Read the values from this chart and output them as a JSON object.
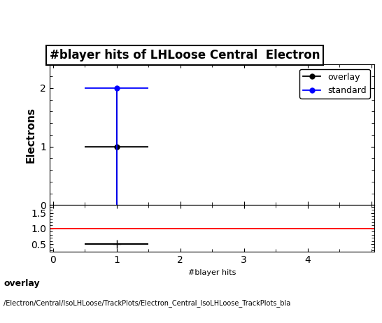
{
  "title": "#blayer hits of LHLoose Central  Electron",
  "ylabel_main": "Electrons",
  "xlabel": "#blayer hits",
  "background_color": "#ffffff",
  "overlay_points": {
    "x": [
      1.0
    ],
    "y": [
      1.0
    ],
    "xerr": [
      0.5
    ],
    "yerr_lo": [
      1.0
    ],
    "yerr_hi": [
      1.0
    ],
    "color": "#000000",
    "marker": "o",
    "label": "overlay"
  },
  "standard_points": {
    "x": [
      1.0
    ],
    "y": [
      2.0
    ],
    "xerr": [
      0.5
    ],
    "yerr_lo": [
      2.0
    ],
    "yerr_hi": [
      0.0
    ],
    "color": "#0000ff",
    "marker": "o",
    "label": "standard"
  },
  "ratio_points": {
    "x": [
      1.0
    ],
    "y": [
      0.5
    ],
    "xerr": [
      0.5
    ],
    "yerr_lo": [
      0.0
    ],
    "yerr_hi": [
      0.0
    ],
    "color": "#000000",
    "marker": "+"
  },
  "main_ylim": [
    0,
    2.4
  ],
  "main_yticks": [
    0,
    1,
    2
  ],
  "ratio_ylim": [
    0.25,
    1.75
  ],
  "ratio_yticks": [
    0.5,
    1.0,
    1.5
  ],
  "xlim": [
    -0.05,
    5.05
  ],
  "xticks": [
    0,
    1,
    2,
    3,
    4
  ],
  "ratio_ref_line": 1.0,
  "ratio_ref_color": "#ff0000",
  "legend_overlay_color": "#000000",
  "legend_standard_color": "#0000ff",
  "footer_line1": "overlay",
  "footer_line2": "/Electron/Central/IsoLHLoose/TrackPlots/Electron_Central_IsoLHLoose_TrackPlots_bla"
}
